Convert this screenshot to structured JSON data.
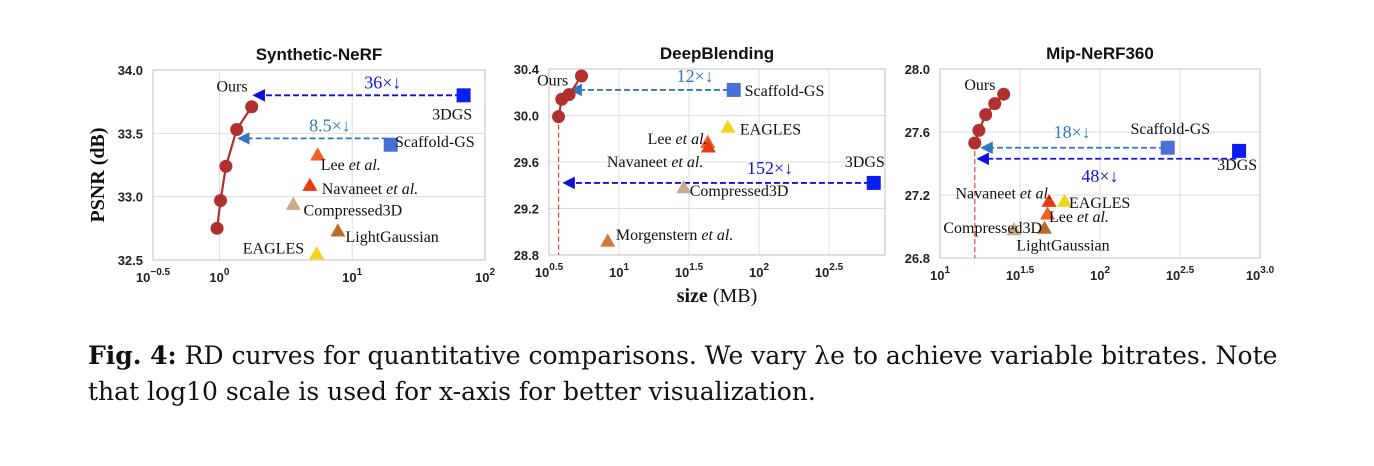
{
  "figure": {
    "ylabel": "PSNR (dB)",
    "xlabel": "size (MB)",
    "caption_prefix": "Fig. 4:",
    "caption_text": "RD curves for quantitative comparisons. We vary λe to achieve variable bitrates. Note that log10 scale is used for x-axis for better visualization."
  },
  "colors": {
    "ours": "#b03030",
    "3dgs": "#0a1ef0",
    "scaffold": "#4a70d8",
    "lee": "#f06020",
    "navaneet": "#e83a10",
    "compressed3d": "#c8aa8c",
    "eagles": "#f5d31a",
    "lightgaussian": "#c06a2a",
    "morgenstern": "#d27a3a",
    "arrow_dark": "#1010dd",
    "arrow_light": "#2f78c0",
    "vline": "#e84040",
    "grid": "#dddddd"
  },
  "chart_data": [
    {
      "type": "scatter",
      "title": "Synthetic-NeRF",
      "xscale": "log10",
      "xlim_log10": [
        -0.5,
        2
      ],
      "ylim": [
        32.5,
        34.0
      ],
      "xticks": [
        {
          "e": -0.5,
          "label": "10−0.5"
        },
        {
          "e": 0,
          "label": "100"
        },
        {
          "e": 1,
          "label": "101"
        },
        {
          "e": 2,
          "label": "102"
        }
      ],
      "yticks": [
        "32.5",
        "33.0",
        "33.5",
        "34.0"
      ],
      "series": [
        {
          "name": "Ours",
          "marker": "circle",
          "color": "ours",
          "line": true,
          "points": [
            [
              0.96,
              32.75
            ],
            [
              1.02,
              32.97
            ],
            [
              1.12,
              33.24
            ],
            [
              1.35,
              33.53
            ],
            [
              1.75,
              33.71
            ]
          ]
        }
      ],
      "markers": [
        {
          "name": "3DGS",
          "shape": "square",
          "color": "3dgs",
          "x": 69,
          "y": 33.8
        },
        {
          "name": "Scaffold-GS",
          "shape": "square",
          "color": "scaffold",
          "x": 19.5,
          "y": 33.41
        },
        {
          "name": "Lee et al.",
          "shape": "triangle",
          "color": "lee",
          "x": 5.5,
          "y": 33.33
        },
        {
          "name": "Navaneet et al.",
          "shape": "triangle",
          "color": "navaneet",
          "x": 4.8,
          "y": 33.09
        },
        {
          "name": "Compressed3D",
          "shape": "triangle",
          "color": "compressed3d",
          "x": 3.6,
          "y": 32.94
        },
        {
          "name": "LightGaussian",
          "shape": "triangle",
          "color": "lightgaussian",
          "x": 7.8,
          "y": 32.73
        },
        {
          "name": "EAGLES",
          "shape": "triangle",
          "color": "eagles",
          "x": 5.4,
          "y": 32.55
        }
      ],
      "labels": [
        {
          "text": "Ours",
          "x": 0.95,
          "y": 33.87
        },
        {
          "text": "3DGS",
          "x": 40,
          "y": 33.65
        },
        {
          "text": "Scaffold-GS",
          "x": 21,
          "y": 33.43
        },
        {
          "text": "Lee et al.",
          "x": 5.8,
          "y": 33.25
        },
        {
          "text": "Navaneet et al.",
          "x": 5.9,
          "y": 33.06
        },
        {
          "text": "Compressed3D",
          "x": 4.3,
          "y": 32.89
        },
        {
          "text": "LightGaussian",
          "x": 8.9,
          "y": 32.68
        },
        {
          "text": "EAGLES",
          "x": 1.5,
          "y": 32.59
        }
      ],
      "arrows": [
        {
          "from": 66,
          "to": 1.85,
          "y": 33.8,
          "color": "arrow_dark",
          "ratio": "36×↓",
          "rx": 17,
          "ry": 33.9
        },
        {
          "from": 18.5,
          "to": 1.42,
          "y": 33.46,
          "color": "arrow_light",
          "ratio": "8.5×↓",
          "rx": 6.8,
          "ry": 33.56
        }
      ]
    },
    {
      "type": "scatter",
      "title": "DeepBlending",
      "xscale": "log10",
      "xlim_log10": [
        0.5,
        2.9
      ],
      "ylim": [
        28.8,
        30.4
      ],
      "xticks": [
        {
          "e": 0.5,
          "label": "100.5"
        },
        {
          "e": 1,
          "label": "101"
        },
        {
          "e": 1.5,
          "label": "101.5"
        },
        {
          "e": 2,
          "label": "102"
        },
        {
          "e": 2.5,
          "label": "102.5"
        }
      ],
      "yticks": [
        "28.8",
        "29.2",
        "29.6",
        "30.0",
        "30.4"
      ],
      "series": [
        {
          "name": "Ours",
          "marker": "circle",
          "color": "ours",
          "line": true,
          "points": [
            [
              3.7,
              29.99
            ],
            [
              3.9,
              30.14
            ],
            [
              4.4,
              30.18
            ],
            [
              5.4,
              30.34
            ]
          ]
        }
      ],
      "markers": [
        {
          "name": "3DGS",
          "shape": "square",
          "color": "3dgs",
          "x": 660,
          "y": 29.42
        },
        {
          "name": "Scaffold-GS",
          "shape": "square",
          "color": "scaffold",
          "x": 66,
          "y": 30.22
        },
        {
          "name": "Lee et al.",
          "shape": "triangle",
          "color": "lee",
          "x": 43,
          "y": 29.77
        },
        {
          "name": "Navaneet et al.",
          "shape": "triangle",
          "color": "navaneet",
          "x": 43.5,
          "y": 29.73
        },
        {
          "name": "EAGLES",
          "shape": "triangle",
          "color": "eagles",
          "x": 60,
          "y": 29.9
        },
        {
          "name": "Compressed3D",
          "shape": "triangle",
          "color": "compressed3d",
          "x": 29,
          "y": 29.38
        },
        {
          "name": "Morgenstern et al.",
          "shape": "triangle",
          "color": "morgenstern",
          "x": 8.3,
          "y": 28.92
        }
      ],
      "labels": [
        {
          "text": "Ours",
          "x": 2.6,
          "y": 30.3
        },
        {
          "text": "Scaffold-GS",
          "x": 79,
          "y": 30.21
        },
        {
          "text": "Lee et al.",
          "x": 16,
          "y": 29.8
        },
        {
          "text": "EAGLES",
          "x": 73,
          "y": 29.88
        },
        {
          "text": "Navaneet et al.",
          "x": 8.2,
          "y": 29.6
        },
        {
          "text": "3DGS",
          "x": 410,
          "y": 29.6
        },
        {
          "text": "Compressed3D",
          "x": 32,
          "y": 29.35
        },
        {
          "text": "Morgenstern et al.",
          "x": 9.5,
          "y": 28.97
        }
      ],
      "arrows": [
        {
          "from": 61,
          "to": 4.6,
          "y": 30.22,
          "color": "arrow_light",
          "ratio": "12×↓",
          "rx": 35,
          "ry": 30.34
        },
        {
          "from": 620,
          "to": 4.1,
          "y": 29.42,
          "color": "arrow_dark",
          "ratio": "152×↓",
          "rx": 120,
          "ry": 29.55
        }
      ],
      "vline": 3.7
    },
    {
      "type": "scatter",
      "title": "Mip-NeRF360",
      "xscale": "log10",
      "xlim_log10": [
        1,
        3
      ],
      "ylim": [
        26.8,
        28.0
      ],
      "xticks": [
        {
          "e": 1,
          "label": "101"
        },
        {
          "e": 1.5,
          "label": "101.5"
        },
        {
          "e": 2,
          "label": "102"
        },
        {
          "e": 2.5,
          "label": "102.5"
        },
        {
          "e": 3,
          "label": "103.0"
        }
      ],
      "yticks": [
        "26.8",
        "27.2",
        "27.6",
        "28.0"
      ],
      "series": [
        {
          "name": "Ours",
          "marker": "circle",
          "color": "ours",
          "line": true,
          "points": [
            [
              16.5,
              27.53
            ],
            [
              17.5,
              27.61
            ],
            [
              19.3,
              27.71
            ],
            [
              22,
              27.78
            ],
            [
              25,
              27.84
            ]
          ]
        }
      ],
      "markers": [
        {
          "name": "3DGS",
          "shape": "square",
          "color": "3dgs",
          "x": 740,
          "y": 27.48
        },
        {
          "name": "Scaffold-GS",
          "shape": "square",
          "color": "scaffold",
          "x": 265,
          "y": 27.5
        },
        {
          "name": "Navaneet et al.",
          "shape": "triangle",
          "color": "navaneet",
          "x": 48,
          "y": 27.16
        },
        {
          "name": "EAGLES",
          "shape": "triangle",
          "color": "eagles",
          "x": 60,
          "y": 27.16
        },
        {
          "name": "Lee et al.",
          "shape": "triangle",
          "color": "lee",
          "x": 47,
          "y": 27.08
        },
        {
          "name": "LightGaussian",
          "shape": "triangle",
          "color": "lightgaussian",
          "x": 45,
          "y": 26.99
        },
        {
          "name": "Compressed3D",
          "shape": "triangle",
          "color": "compressed3d",
          "x": 29,
          "y": 26.98
        }
      ],
      "labels": [
        {
          "text": "Ours",
          "x": 14.2,
          "y": 27.9
        },
        {
          "text": "Scaffold-GS",
          "x": 155,
          "y": 27.62
        },
        {
          "text": "3DGS",
          "x": 540,
          "y": 27.39
        },
        {
          "text": "Navaneet et al.",
          "x": 12.5,
          "y": 27.21
        },
        {
          "text": "EAGLES",
          "x": 64,
          "y": 27.15
        },
        {
          "text": "Lee et al.",
          "x": 48,
          "y": 27.06
        },
        {
          "text": "Compressed3D",
          "x": 10.5,
          "y": 26.99
        },
        {
          "text": "LightGaussian",
          "x": 30,
          "y": 26.88
        }
      ],
      "arrows": [
        {
          "from": 255,
          "to": 18.5,
          "y": 27.5,
          "color": "arrow_light",
          "ratio": "18×↓",
          "rx": 67,
          "ry": 27.6
        },
        {
          "from": 710,
          "to": 17.5,
          "y": 27.43,
          "color": "arrow_dark",
          "ratio": "48×↓",
          "rx": 100,
          "ry": 27.32
        }
      ],
      "vline": 16.5
    }
  ]
}
